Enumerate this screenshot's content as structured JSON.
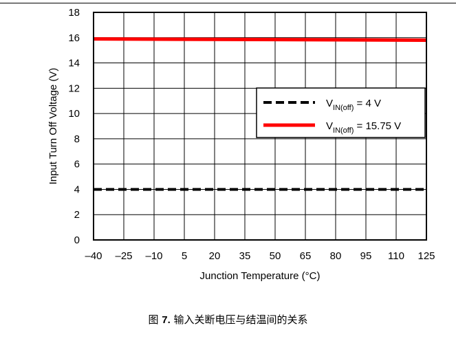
{
  "chart_data": {
    "type": "line",
    "xlabel": "Junction Temperature (°C)",
    "ylabel": "Input Turn Off Voltage (V)",
    "xlim": [
      -40,
      125
    ],
    "ylim": [
      0,
      18
    ],
    "x_ticks": [
      "–40",
      "–25",
      "–10",
      "5",
      "20",
      "35",
      "50",
      "65",
      "80",
      "95",
      "110",
      "125"
    ],
    "x_tick_values": [
      -40,
      -25,
      -10,
      5,
      20,
      35,
      50,
      65,
      80,
      95,
      110,
      125
    ],
    "y_ticks": [
      "0",
      "2",
      "4",
      "6",
      "8",
      "10",
      "12",
      "14",
      "16",
      "18"
    ],
    "y_tick_values": [
      0,
      2,
      4,
      6,
      8,
      10,
      12,
      14,
      16,
      18
    ],
    "grid": true,
    "legend_position": "right",
    "series": [
      {
        "name_main": "V",
        "name_sub": "IN(off)",
        "name_suffix": " = 4 V",
        "color": "#000000",
        "style": "dashed",
        "x": [
          -40,
          125
        ],
        "y": [
          4,
          4
        ]
      },
      {
        "name_main": "V",
        "name_sub": "IN(off)",
        "name_suffix": " = 15.75 V",
        "color": "#ff0000",
        "style": "solid",
        "x": [
          -40,
          125
        ],
        "y": [
          15.9,
          15.8
        ]
      }
    ]
  },
  "caption": {
    "prefix": "图 ",
    "number": "7.",
    "text": " 输入关断电压与结温间的关系"
  }
}
